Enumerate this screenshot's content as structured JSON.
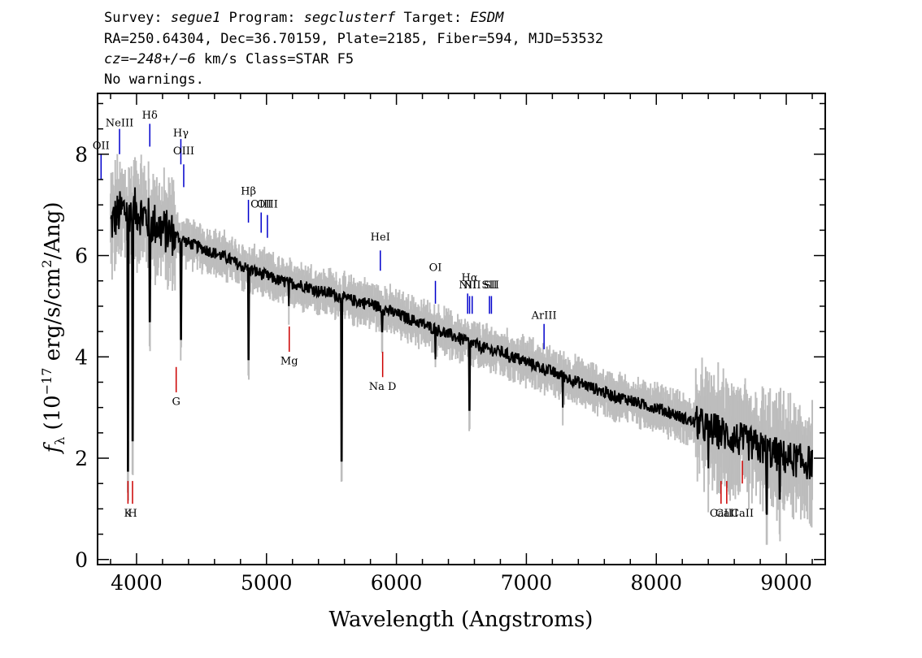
{
  "header": {
    "line1": [
      {
        "t": "Survey: ",
        "i": false
      },
      {
        "t": "segue1",
        "i": true
      },
      {
        "t": " Program: ",
        "i": false
      },
      {
        "t": "segclusterf",
        "i": true
      },
      {
        "t": " Target: ",
        "i": false
      },
      {
        "t": "ESDM",
        "i": true
      }
    ],
    "line2": "RA=250.64304, Dec=36.70159, Plate=2185, Fiber=594, MJD=53532",
    "line3": [
      {
        "t": "cz=",
        "i": true
      },
      {
        "t": "−248+/−6",
        "i": true
      },
      {
        "t": " km/s Class=STAR F5",
        "i": false
      }
    ],
    "line4": "No warnings."
  },
  "chart_data": {
    "type": "line",
    "xlabel": "Wavelength (Angstroms)",
    "ylabel_parts": {
      "f": "f",
      "sub": "λ",
      "mid": " (10",
      "exp": "−17",
      "rest": " erg/s/cm",
      "exp2": "2",
      "end": "/Ang)"
    },
    "xlim": [
      3700,
      9300
    ],
    "ylim": [
      -0.1,
      9.2
    ],
    "x_ticks": [
      4000,
      5000,
      6000,
      7000,
      8000,
      9000
    ],
    "y_ticks": [
      0,
      2,
      4,
      6,
      8
    ],
    "x_tick_labels": [
      "4000",
      "5000",
      "6000",
      "7000",
      "8000",
      "9000"
    ],
    "y_tick_labels": [
      "0",
      "2",
      "4",
      "6",
      "8"
    ],
    "series": [
      {
        "color": "#000000",
        "x": [
          3800,
          3850,
          3900,
          3950,
          4000,
          4050,
          4100,
          4200,
          4300,
          4400,
          4500,
          4600,
          4700,
          4800,
          4900,
          5000,
          5100,
          5200,
          5300,
          5400,
          5500,
          5600,
          5700,
          5800,
          5900,
          6000,
          6100,
          6200,
          6300,
          6400,
          6500,
          6600,
          6700,
          6800,
          6900,
          7000,
          7100,
          7200,
          7300,
          7400,
          7500,
          7600,
          7700,
          7800,
          7900,
          8000,
          8100,
          8200,
          8300,
          8400,
          8500,
          8600,
          8700,
          8800,
          8900,
          9000,
          9100,
          9200
        ],
        "values": [
          6.6,
          6.8,
          6.9,
          6.9,
          6.9,
          6.8,
          6.7,
          6.5,
          6.4,
          6.25,
          6.15,
          6.05,
          5.95,
          5.8,
          5.7,
          5.6,
          5.5,
          5.45,
          5.4,
          5.3,
          5.25,
          5.15,
          5.1,
          5.05,
          4.95,
          4.85,
          4.75,
          4.65,
          4.55,
          4.45,
          4.35,
          4.25,
          4.15,
          4.1,
          4.0,
          3.9,
          3.8,
          3.7,
          3.6,
          3.5,
          3.4,
          3.3,
          3.2,
          3.15,
          3.05,
          3.0,
          2.9,
          2.8,
          2.7,
          2.6,
          2.5,
          2.4,
          2.3,
          2.2,
          2.1,
          2.0,
          1.95,
          1.9
        ]
      }
    ],
    "absorption_features": [
      {
        "x": 3934,
        "depth": 1.75
      },
      {
        "x": 3969,
        "depth": 2.35
      },
      {
        "x": 4102,
        "depth": 4.7
      },
      {
        "x": 4341,
        "depth": 4.35
      },
      {
        "x": 4861,
        "depth": 3.95
      },
      {
        "x": 5172,
        "depth": 5.0
      },
      {
        "x": 5577,
        "depth": 1.95
      },
      {
        "x": 5890,
        "depth": 4.5
      },
      {
        "x": 6300,
        "depth": 3.95
      },
      {
        "x": 6563,
        "depth": 2.95
      },
      {
        "x": 6870,
        "depth": 3.9
      },
      {
        "x": 7280,
        "depth": 3.0
      },
      {
        "x": 8400,
        "depth": 1.8
      },
      {
        "x": 8850,
        "depth": 0.9
      },
      {
        "x": 8950,
        "depth": 1.2
      }
    ],
    "emission_lines": [
      {
        "label": "OII",
        "x": 3727,
        "label_y": 8.1,
        "y0": 7.5,
        "y1": 8.0
      },
      {
        "label": "NeIII",
        "x": 3869,
        "label_y": 8.55,
        "y0": 8.0,
        "y1": 8.5
      },
      {
        "label": "Hδ",
        "x": 4102,
        "label_y": 8.7,
        "y0": 8.15,
        "y1": 8.6
      },
      {
        "label": "Hγ",
        "x": 4341,
        "label_y": 8.35,
        "y0": 7.8,
        "y1": 8.3
      },
      {
        "label": "OIII",
        "x": 4363,
        "label_y": 8.0,
        "y0": 7.35,
        "y1": 7.8
      },
      {
        "label": "Hβ",
        "x": 4861,
        "label_y": 7.2,
        "y0": 6.65,
        "y1": 7.1
      },
      {
        "label": "OIII",
        "x": 4959,
        "label_y": 6.95,
        "y0": 6.45,
        "y1": 6.85
      },
      {
        "label": "OIII",
        "x": 5007,
        "label_y": 6.95,
        "y0": 6.35,
        "y1": 6.8
      },
      {
        "label": "HeI",
        "x": 5876,
        "label_y": 6.3,
        "y0": 5.7,
        "y1": 6.1
      },
      {
        "label": "OI",
        "x": 6300,
        "label_y": 5.7,
        "y0": 5.05,
        "y1": 5.5
      },
      {
        "label": "NII",
        "x": 6548,
        "label_y": 5.35,
        "y0": 4.85,
        "y1": 5.25
      },
      {
        "label": "Hα",
        "x": 6563,
        "label_y": 5.5,
        "y0": 4.85,
        "y1": 5.2
      },
      {
        "label": "NII",
        "x": 6583,
        "label_y": 5.35,
        "y0": 4.85,
        "y1": 5.2
      },
      {
        "label": "SII",
        "x": 6716,
        "label_y": 5.35,
        "y0": 4.85,
        "y1": 5.2
      },
      {
        "label": "SII",
        "x": 6731,
        "label_y": 5.35,
        "y0": 4.85,
        "y1": 5.2
      },
      {
        "label": "ArIII",
        "x": 7136,
        "label_y": 4.75,
        "y0": 4.15,
        "y1": 4.65
      }
    ],
    "absorption_lines": [
      {
        "label": "K",
        "x": 3934,
        "label_y": 0.85,
        "y0": 1.1,
        "y1": 1.55
      },
      {
        "label": "H",
        "x": 3969,
        "label_y": 0.85,
        "y0": 1.1,
        "y1": 1.55
      },
      {
        "label": "G",
        "x": 4305,
        "label_y": 3.05,
        "y0": 3.3,
        "y1": 3.8
      },
      {
        "label": "Mg",
        "x": 5175,
        "label_y": 3.85,
        "y0": 4.1,
        "y1": 4.6
      },
      {
        "label": "Na D",
        "x": 5894,
        "label_y": 3.35,
        "y0": 3.6,
        "y1": 4.1
      },
      {
        "label": "CaII",
        "x": 8498,
        "label_y": 0.85,
        "y0": 1.1,
        "y1": 1.55
      },
      {
        "label": "CaII",
        "x": 8542,
        "label_y": 0.85,
        "y0": 1.1,
        "y1": 1.55
      },
      {
        "label": "CaII",
        "x": 8662,
        "label_y": 0.85,
        "y0": 1.5,
        "y1": 1.95
      }
    ],
    "colors": {
      "flux": "#000000",
      "error_band": "#bdbdbd",
      "emission": "#0000cc",
      "absorption": "#cc0000"
    }
  }
}
